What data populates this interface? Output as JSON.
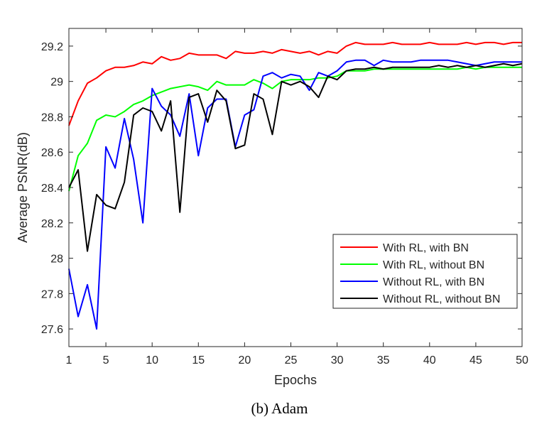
{
  "caption": "(b)  Adam",
  "chart_data": {
    "type": "line",
    "xlabel": "Epochs",
    "ylabel": "Average PSNR(dB)",
    "xlim": [
      1,
      50
    ],
    "ylim": [
      27.5,
      29.3
    ],
    "xticks": [
      1,
      5,
      10,
      15,
      20,
      25,
      30,
      35,
      40,
      45,
      50
    ],
    "yticks": [
      27.6,
      27.8,
      28,
      28.2,
      28.4,
      28.6,
      28.8,
      29,
      29.2
    ],
    "grid": false,
    "legend_position": "lower-right",
    "series": [
      {
        "name": "With RL, with BN",
        "color": "#ff0000",
        "values": [
          28.75,
          28.89,
          28.99,
          29.02,
          29.06,
          29.08,
          29.08,
          29.09,
          29.11,
          29.1,
          29.14,
          29.12,
          29.13,
          29.16,
          29.15,
          29.15,
          29.15,
          29.13,
          29.17,
          29.16,
          29.16,
          29.17,
          29.16,
          29.18,
          29.17,
          29.16,
          29.17,
          29.15,
          29.17,
          29.16,
          29.2,
          29.22,
          29.21,
          29.21,
          29.21,
          29.22,
          29.21,
          29.21,
          29.21,
          29.22,
          29.21,
          29.21,
          29.21,
          29.22,
          29.21,
          29.22,
          29.22,
          29.21,
          29.22,
          29.22
        ]
      },
      {
        "name": "With RL, without BN",
        "color": "#00ff00",
        "values": [
          28.38,
          28.58,
          28.65,
          28.78,
          28.81,
          28.8,
          28.83,
          28.87,
          28.89,
          28.92,
          28.94,
          28.96,
          28.97,
          28.98,
          28.97,
          28.95,
          29.0,
          28.98,
          28.98,
          28.98,
          29.01,
          28.99,
          28.96,
          29.0,
          29.01,
          29.01,
          29.01,
          29.02,
          29.02,
          29.03,
          29.06,
          29.06,
          29.06,
          29.07,
          29.07,
          29.07,
          29.07,
          29.07,
          29.07,
          29.07,
          29.07,
          29.07,
          29.07,
          29.08,
          29.07,
          29.08,
          29.08,
          29.08,
          29.08,
          29.08
        ]
      },
      {
        "name": "Without RL, with BN",
        "color": "#0000ff",
        "values": [
          27.94,
          27.67,
          27.85,
          27.6,
          28.63,
          28.51,
          28.79,
          28.56,
          28.2,
          28.96,
          28.86,
          28.81,
          28.69,
          28.93,
          28.58,
          28.85,
          28.9,
          28.9,
          28.63,
          28.81,
          28.84,
          29.03,
          29.05,
          29.02,
          29.04,
          29.03,
          28.95,
          29.05,
          29.03,
          29.06,
          29.11,
          29.12,
          29.12,
          29.09,
          29.12,
          29.11,
          29.11,
          29.11,
          29.12,
          29.12,
          29.12,
          29.12,
          29.11,
          29.1,
          29.09,
          29.1,
          29.11,
          29.11,
          29.11,
          29.11
        ]
      },
      {
        "name": "Without RL, without BN",
        "color": "#000000",
        "values": [
          28.4,
          28.5,
          28.04,
          28.36,
          28.3,
          28.28,
          28.43,
          28.81,
          28.85,
          28.83,
          28.72,
          28.89,
          28.26,
          28.91,
          28.93,
          28.77,
          28.95,
          28.89,
          28.62,
          28.64,
          28.93,
          28.9,
          28.7,
          29.0,
          28.98,
          29.0,
          28.97,
          28.91,
          29.03,
          29.01,
          29.06,
          29.07,
          29.07,
          29.08,
          29.07,
          29.08,
          29.08,
          29.08,
          29.08,
          29.08,
          29.09,
          29.08,
          29.09,
          29.08,
          29.09,
          29.08,
          29.09,
          29.1,
          29.09,
          29.1
        ]
      }
    ]
  }
}
